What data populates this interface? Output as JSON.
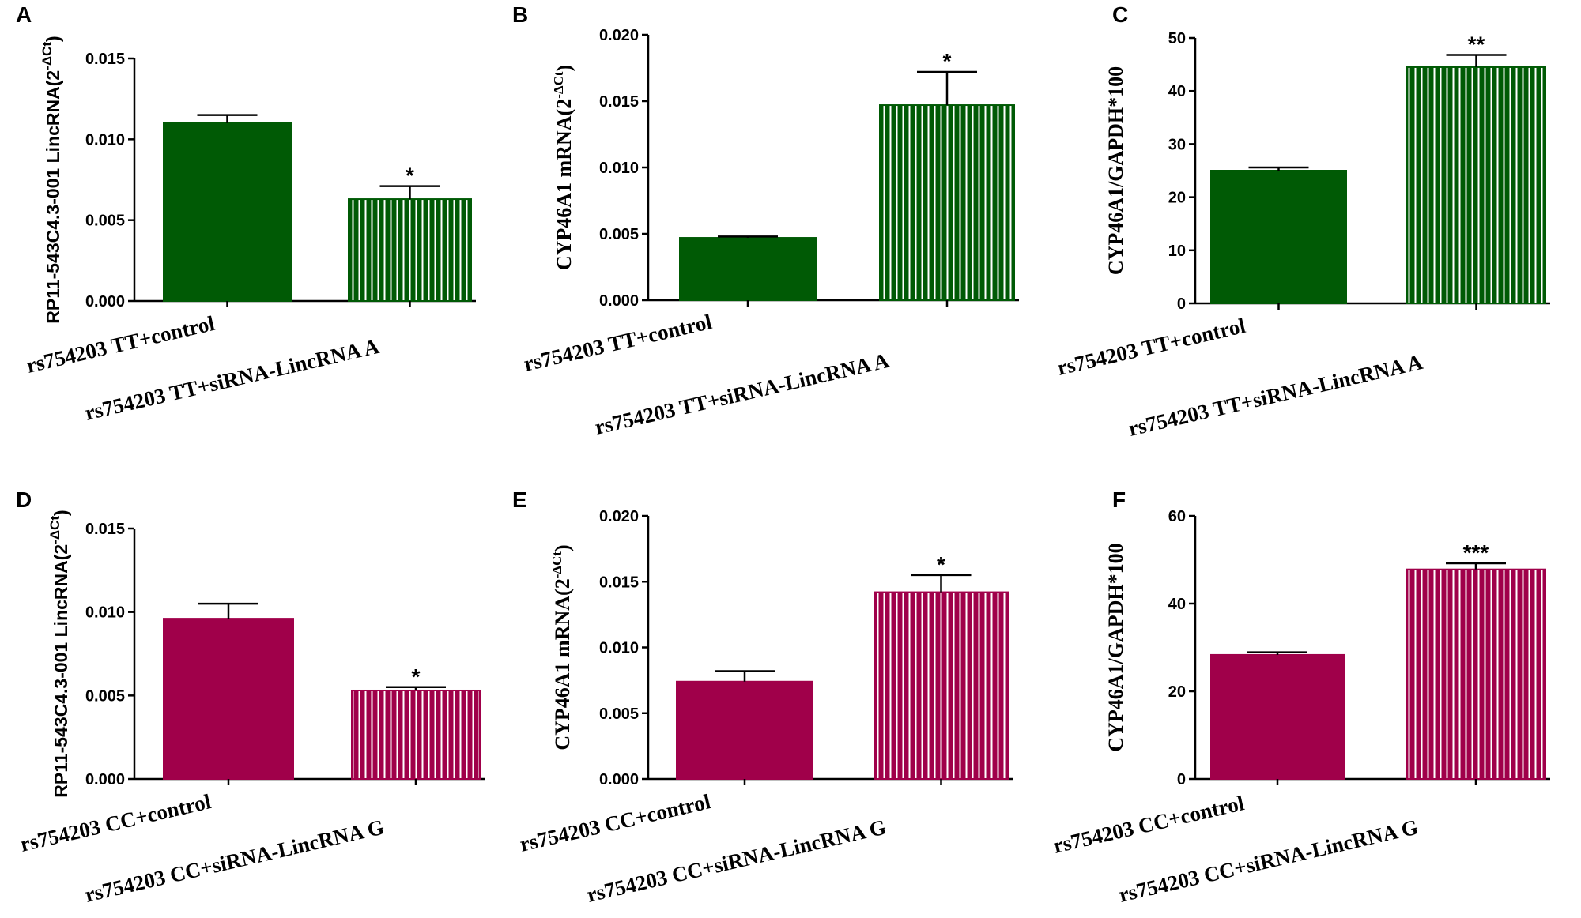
{
  "colors": {
    "green": "#005a05",
    "crimson": "#a0004a",
    "stripe": "#ffffff"
  },
  "chart_data": [
    {
      "panel": "A",
      "type": "bar",
      "categories": [
        "rs754203 TT+control",
        "rs754203 TT+siRNA-LincRNA A"
      ],
      "values": [
        0.011,
        0.0063
      ],
      "errors": [
        0.0005,
        0.0008
      ],
      "significance": [
        "",
        "*"
      ],
      "patterns": [
        "solid",
        "striped"
      ],
      "ylabel": "RP11-543C4.3-001 LincRNA(2",
      "ylabel_sup": "-ΔCt",
      "ylabel_end": ")",
      "yticks": [
        "0.000",
        "0.005",
        "0.010",
        "0.015"
      ],
      "tick_values": [
        0,
        0.005,
        0.01,
        0.015
      ],
      "ylim": [
        0,
        0.015
      ],
      "color": "green",
      "ylabel_font": "sans"
    },
    {
      "panel": "B",
      "type": "bar",
      "categories": [
        "rs754203 TT+control",
        "rs754203 TT+siRNA-LincRNA A"
      ],
      "values": [
        0.0047,
        0.0147
      ],
      "errors": [
        0.0001,
        0.0025
      ],
      "significance": [
        "",
        "*"
      ],
      "patterns": [
        "solid",
        "striped"
      ],
      "ylabel": "CYP46A1 mRNA(2",
      "ylabel_sup": "-ΔCt",
      "ylabel_end": ")",
      "yticks": [
        "0.000",
        "0.005",
        "0.010",
        "0.015",
        "0.020"
      ],
      "tick_values": [
        0,
        0.005,
        0.01,
        0.015,
        0.02
      ],
      "ylim": [
        0,
        0.02
      ],
      "color": "green",
      "ylabel_font": "serif"
    },
    {
      "panel": "C",
      "type": "bar",
      "categories": [
        "rs754203 TT+control",
        "rs754203 TT+siRNA-LincRNA A"
      ],
      "values": [
        25,
        44.5
      ],
      "errors": [
        0.6,
        2.3
      ],
      "significance": [
        "",
        "**"
      ],
      "patterns": [
        "solid",
        "striped"
      ],
      "ylabel": "CYP46A1/GAPDH*100",
      "ylabel_sup": "",
      "ylabel_end": "",
      "yticks": [
        "0",
        "10",
        "20",
        "30",
        "40",
        "50"
      ],
      "tick_values": [
        0,
        10,
        20,
        30,
        40,
        50
      ],
      "ylim": [
        0,
        50
      ],
      "color": "green",
      "ylabel_font": "serif"
    },
    {
      "panel": "D",
      "type": "bar",
      "categories": [
        "rs754203 CC+control",
        "rs754203 CC+siRNA-LincRNA G"
      ],
      "values": [
        0.0096,
        0.0053
      ],
      "errors": [
        0.0009,
        0.0002
      ],
      "significance": [
        "",
        "*"
      ],
      "patterns": [
        "solid",
        "striped"
      ],
      "ylabel": "RP11-543C4.3-001 LincRNA(2",
      "ylabel_sup": "-ΔCt",
      "ylabel_end": ")",
      "yticks": [
        "0.000",
        "0.005",
        "0.010",
        "0.015"
      ],
      "tick_values": [
        0,
        0.005,
        0.01,
        0.015
      ],
      "ylim": [
        0,
        0.015
      ],
      "color": "crimson",
      "ylabel_font": "sans"
    },
    {
      "panel": "E",
      "type": "bar",
      "categories": [
        "rs754203 CC+control",
        "rs754203 CC+siRNA-LincRNA G"
      ],
      "values": [
        0.0074,
        0.0142
      ],
      "errors": [
        0.0008,
        0.0013
      ],
      "significance": [
        "",
        "*"
      ],
      "patterns": [
        "solid",
        "striped"
      ],
      "ylabel": "CYP46A1 mRNA(2",
      "ylabel_sup": "-ΔCt",
      "ylabel_end": ")",
      "yticks": [
        "0.000",
        "0.005",
        "0.010",
        "0.015",
        "0.020"
      ],
      "tick_values": [
        0,
        0.005,
        0.01,
        0.015,
        0.02
      ],
      "ylim": [
        0,
        0.02
      ],
      "color": "crimson",
      "ylabel_font": "serif"
    },
    {
      "panel": "F",
      "type": "bar",
      "categories": [
        "rs754203 CC+control",
        "rs754203 CC+siRNA-LincRNA G"
      ],
      "values": [
        28.3,
        47.8
      ],
      "errors": [
        0.6,
        1.4
      ],
      "significance": [
        "",
        "***"
      ],
      "patterns": [
        "solid",
        "striped"
      ],
      "ylabel": "CYP46A1/GAPDH*100",
      "ylabel_sup": "",
      "ylabel_end": "",
      "yticks": [
        "0",
        "20",
        "40",
        "60"
      ],
      "tick_values": [
        0,
        20,
        40,
        60
      ],
      "ylim": [
        0,
        60
      ],
      "color": "crimson",
      "ylabel_font": "serif"
    }
  ]
}
